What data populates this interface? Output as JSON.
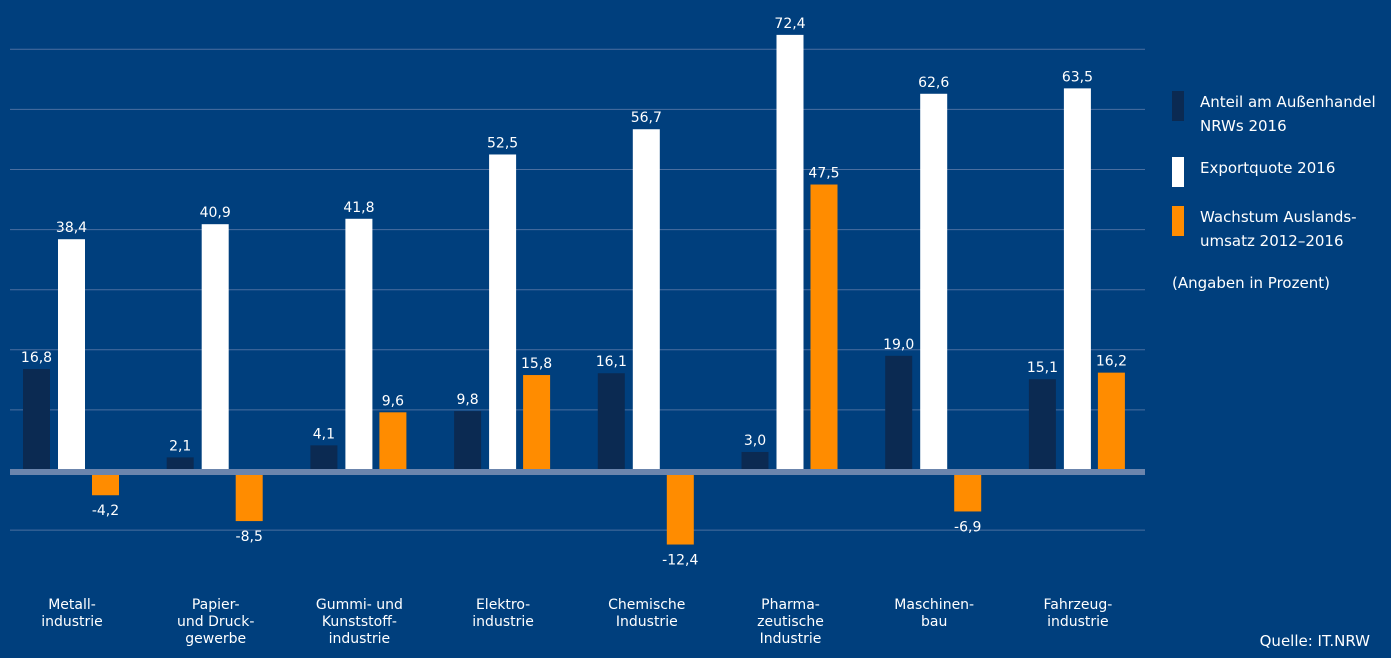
{
  "chart_data": {
    "type": "bar",
    "categories": [
      "Metall-\nindustrie",
      "Papier-\nund Druck-\ngewerbe",
      "Gummi- und\nKunststoff-\nindustrie",
      "Elektro-\nindustrie",
      "Chemische\nIndustrie",
      "Pharma-\nzeutische\nIndustrie",
      "Maschinen-\nbau",
      "Fahrzeug-\nindustrie"
    ],
    "series": [
      {
        "name": "Anteil am Außenhandel NRWs 2016",
        "color": "#0b2a52",
        "values": [
          16.8,
          2.1,
          4.1,
          9.8,
          16.1,
          3.0,
          19.0,
          15.1
        ],
        "labels": [
          "16,8",
          "2,1",
          "4,1",
          "9,8",
          "16,1",
          "3,0",
          "19,0",
          "15,1"
        ]
      },
      {
        "name": "Exportquote 2016",
        "color": "#ffffff",
        "values": [
          38.4,
          40.9,
          41.8,
          52.5,
          56.7,
          72.4,
          62.6,
          63.5
        ],
        "labels": [
          "38,4",
          "40,9",
          "41,8",
          "52,5",
          "56,7",
          "72,4",
          "62,6",
          "63,5"
        ]
      },
      {
        "name": "Wachstum Auslandsumsatz 2012–2016",
        "color": "#ff8c00",
        "values": [
          -4.2,
          -8.5,
          9.6,
          15.8,
          -12.4,
          47.5,
          -6.9,
          16.2
        ],
        "labels": [
          "-4,2",
          "-8,5",
          "9,6",
          "15,8",
          "-12,4",
          "47,5",
          "-6,9",
          "16,2"
        ]
      }
    ],
    "ylim": [
      -20,
      75
    ],
    "grid": true,
    "legend_position": "right"
  },
  "legend": {
    "items": [
      {
        "label": "Anteil am Außenhandel\nNRWs 2016",
        "color": "#0b2a52"
      },
      {
        "label": "Exportquote 2016",
        "color": "#ffffff"
      },
      {
        "label": "Wachstum Auslands-\numsatz 2012–2016",
        "color": "#ff8c00"
      }
    ],
    "note": "(Angaben in Prozent)"
  },
  "source": "Quelle: IT.NRW",
  "colors": {
    "background": "#003f7d",
    "gridline": "#4a6fa0",
    "zeroline": "#6b85ad"
  }
}
